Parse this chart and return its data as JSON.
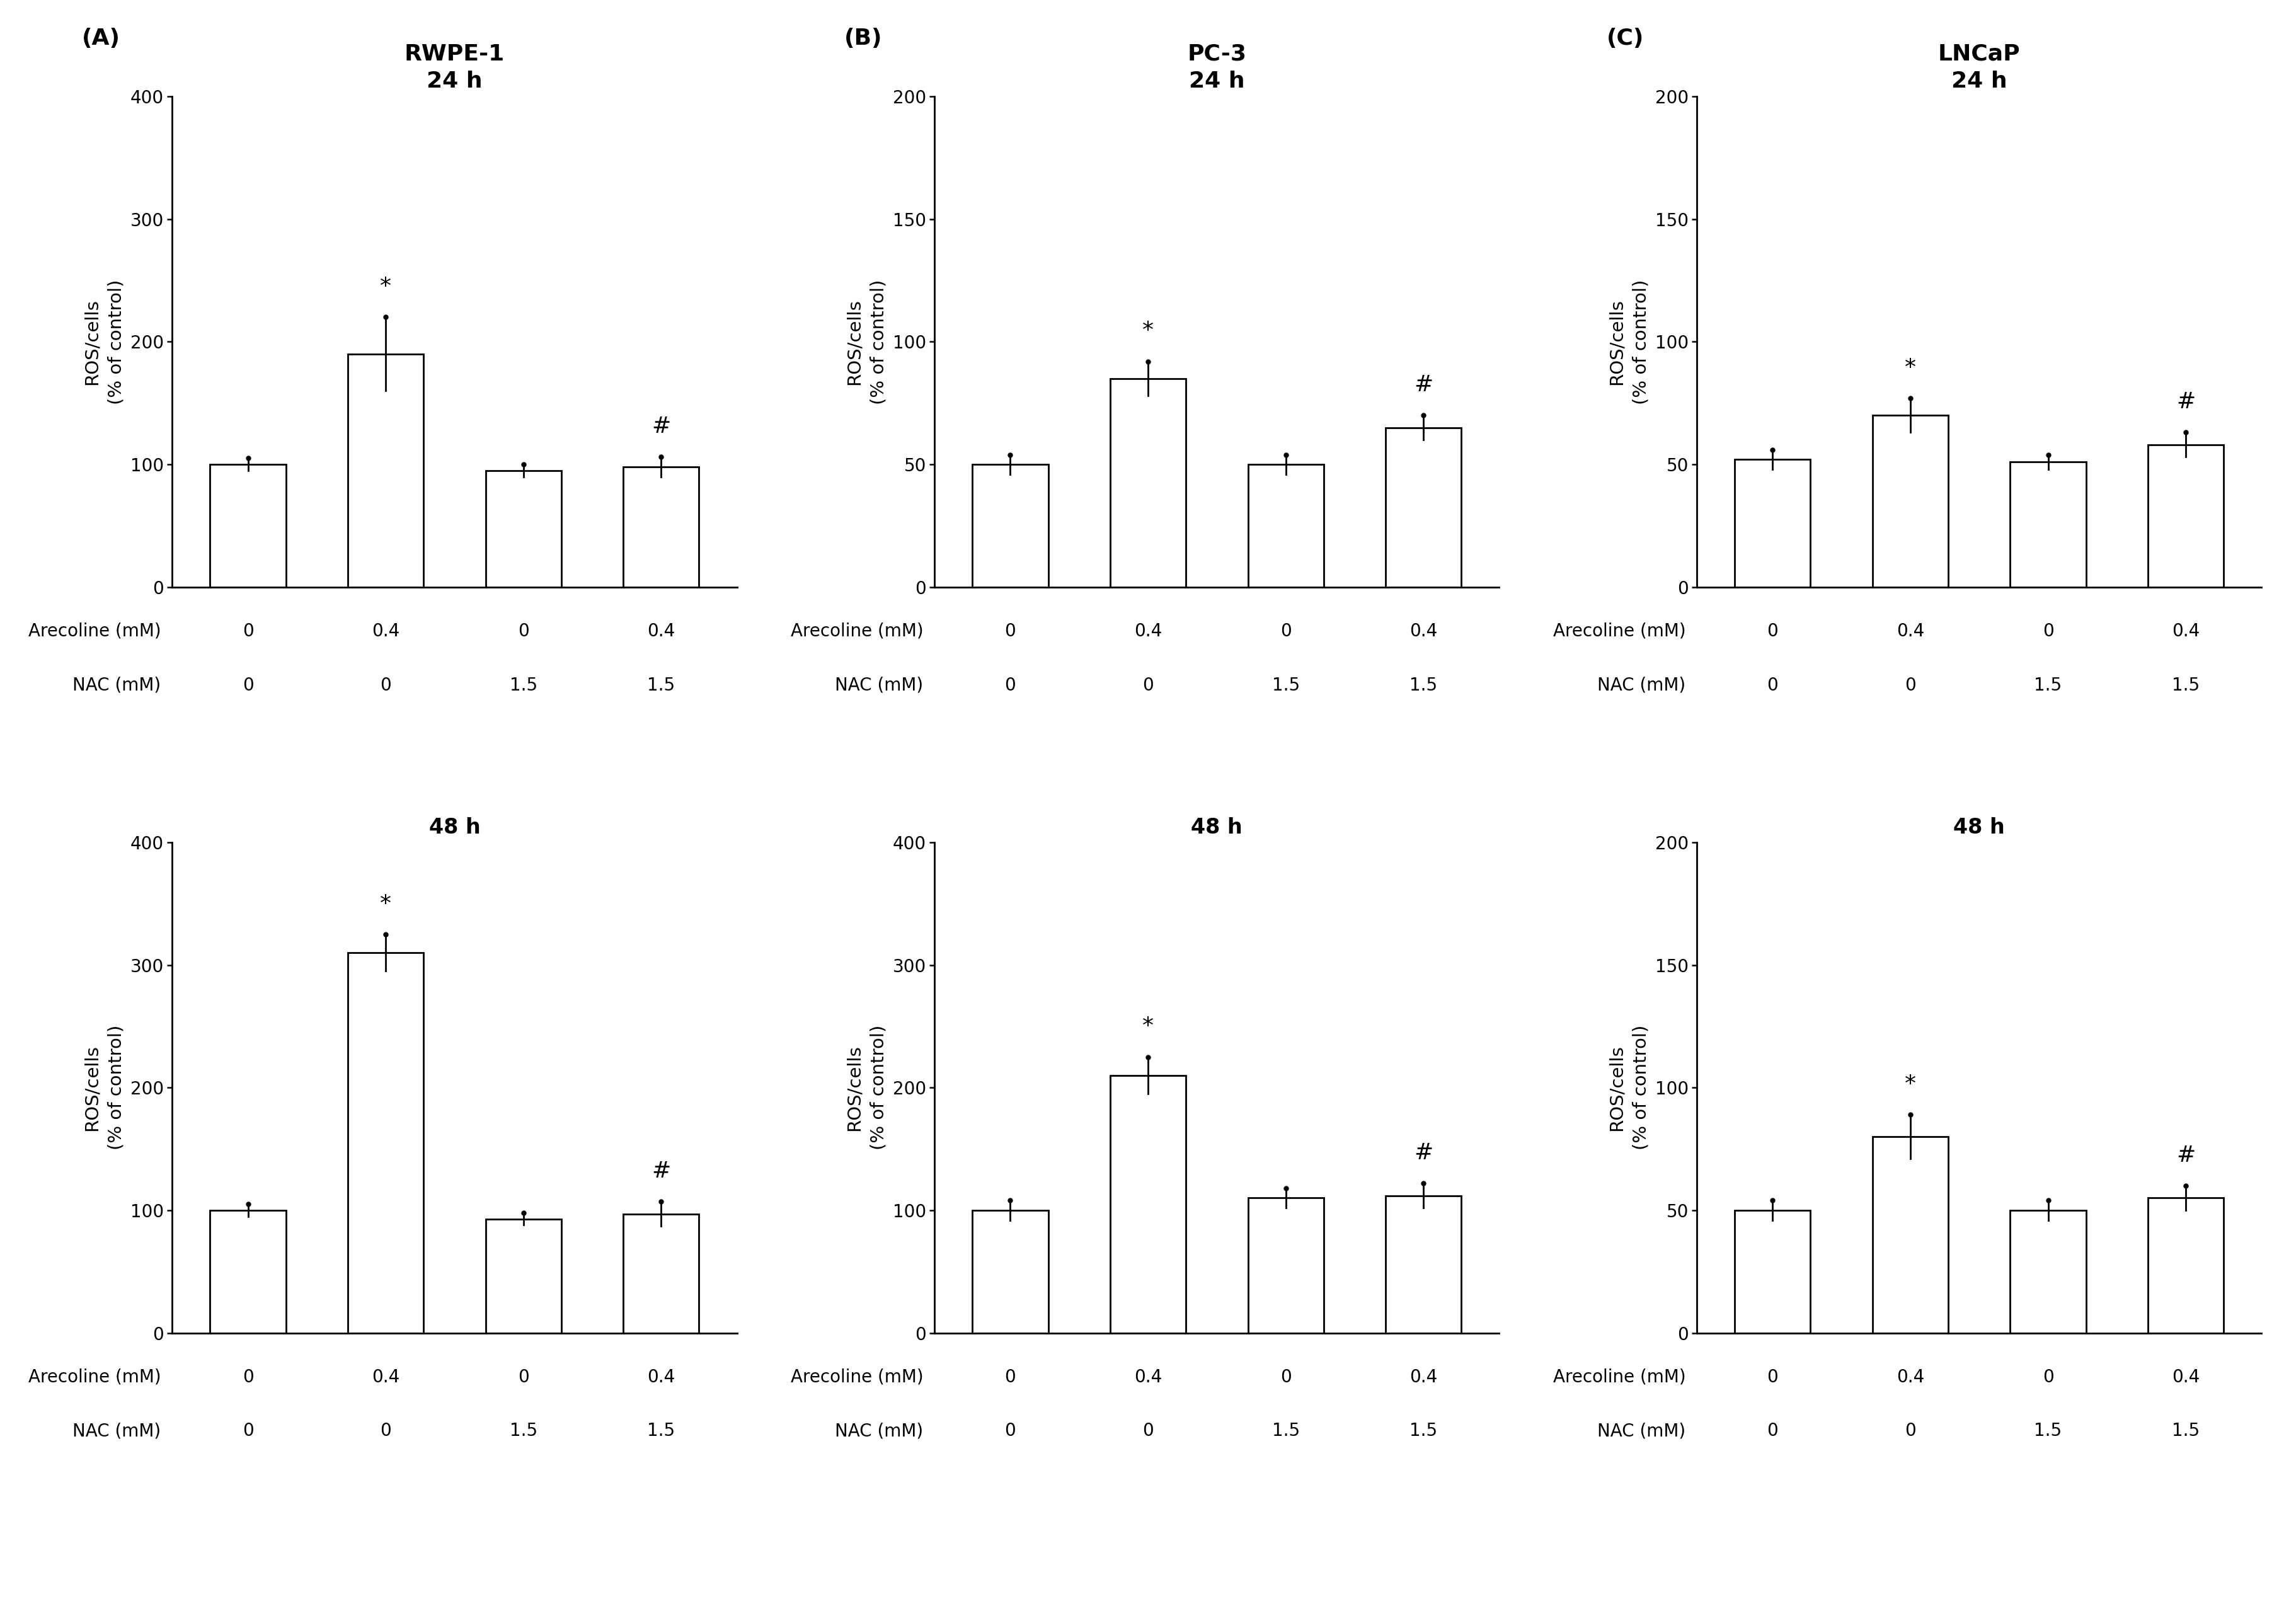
{
  "panels": [
    {
      "row": 0,
      "col": 0,
      "panel_label": "(A)",
      "cell_line": "RWPE-1",
      "time": "24 h",
      "values": [
        100,
        190,
        95,
        98
      ],
      "errors": [
        5,
        30,
        5,
        8
      ],
      "ylim": [
        0,
        400
      ],
      "yticks": [
        0,
        100,
        200,
        300,
        400
      ],
      "star_bar": 1,
      "hash_bar": 3
    },
    {
      "row": 0,
      "col": 1,
      "panel_label": "(B)",
      "cell_line": "PC-3",
      "time": "24 h",
      "values": [
        50,
        85,
        50,
        65
      ],
      "errors": [
        4,
        7,
        4,
        5
      ],
      "ylim": [
        0,
        200
      ],
      "yticks": [
        0,
        50,
        100,
        150,
        200
      ],
      "star_bar": 1,
      "hash_bar": 3
    },
    {
      "row": 0,
      "col": 2,
      "panel_label": "(C)",
      "cell_line": "LNCaP",
      "time": "24 h",
      "values": [
        52,
        70,
        51,
        58
      ],
      "errors": [
        4,
        7,
        3,
        5
      ],
      "ylim": [
        0,
        200
      ],
      "yticks": [
        0,
        50,
        100,
        150,
        200
      ],
      "star_bar": 1,
      "hash_bar": 3
    },
    {
      "row": 1,
      "col": 0,
      "panel_label": "",
      "cell_line": "",
      "time": "48 h",
      "values": [
        100,
        310,
        93,
        97
      ],
      "errors": [
        5,
        15,
        5,
        10
      ],
      "ylim": [
        0,
        400
      ],
      "yticks": [
        0,
        100,
        200,
        300,
        400
      ],
      "star_bar": 1,
      "hash_bar": 3
    },
    {
      "row": 1,
      "col": 1,
      "panel_label": "",
      "cell_line": "",
      "time": "48 h",
      "values": [
        100,
        210,
        110,
        112
      ],
      "errors": [
        8,
        15,
        8,
        10
      ],
      "ylim": [
        0,
        400
      ],
      "yticks": [
        0,
        100,
        200,
        300,
        400
      ],
      "star_bar": 1,
      "hash_bar": 3
    },
    {
      "row": 1,
      "col": 2,
      "panel_label": "",
      "cell_line": "",
      "time": "48 h",
      "values": [
        50,
        80,
        50,
        55
      ],
      "errors": [
        4,
        9,
        4,
        5
      ],
      "ylim": [
        0,
        200
      ],
      "yticks": [
        0,
        50,
        100,
        150,
        200
      ],
      "star_bar": 1,
      "hash_bar": 3
    }
  ],
  "arecoline_vals": [
    "0",
    "0.4",
    "0",
    "0.4"
  ],
  "nac_vals": [
    "0",
    "0",
    "1.5",
    "1.5"
  ],
  "bar_color": "white",
  "bar_edgecolor": "black",
  "bar_width": 0.55,
  "ylabel": "ROS/cells\n(% of control)",
  "xlabel_arecoline": "Arecoline (mM)",
  "xlabel_nac": "NAC (mM)",
  "background_color": "white",
  "fontsize_title_cellline": 26,
  "fontsize_title_time": 24,
  "fontsize_ylabel": 21,
  "fontsize_tick": 20,
  "fontsize_xlabel": 20,
  "fontsize_panel_label": 26,
  "fontsize_annotation": 26
}
